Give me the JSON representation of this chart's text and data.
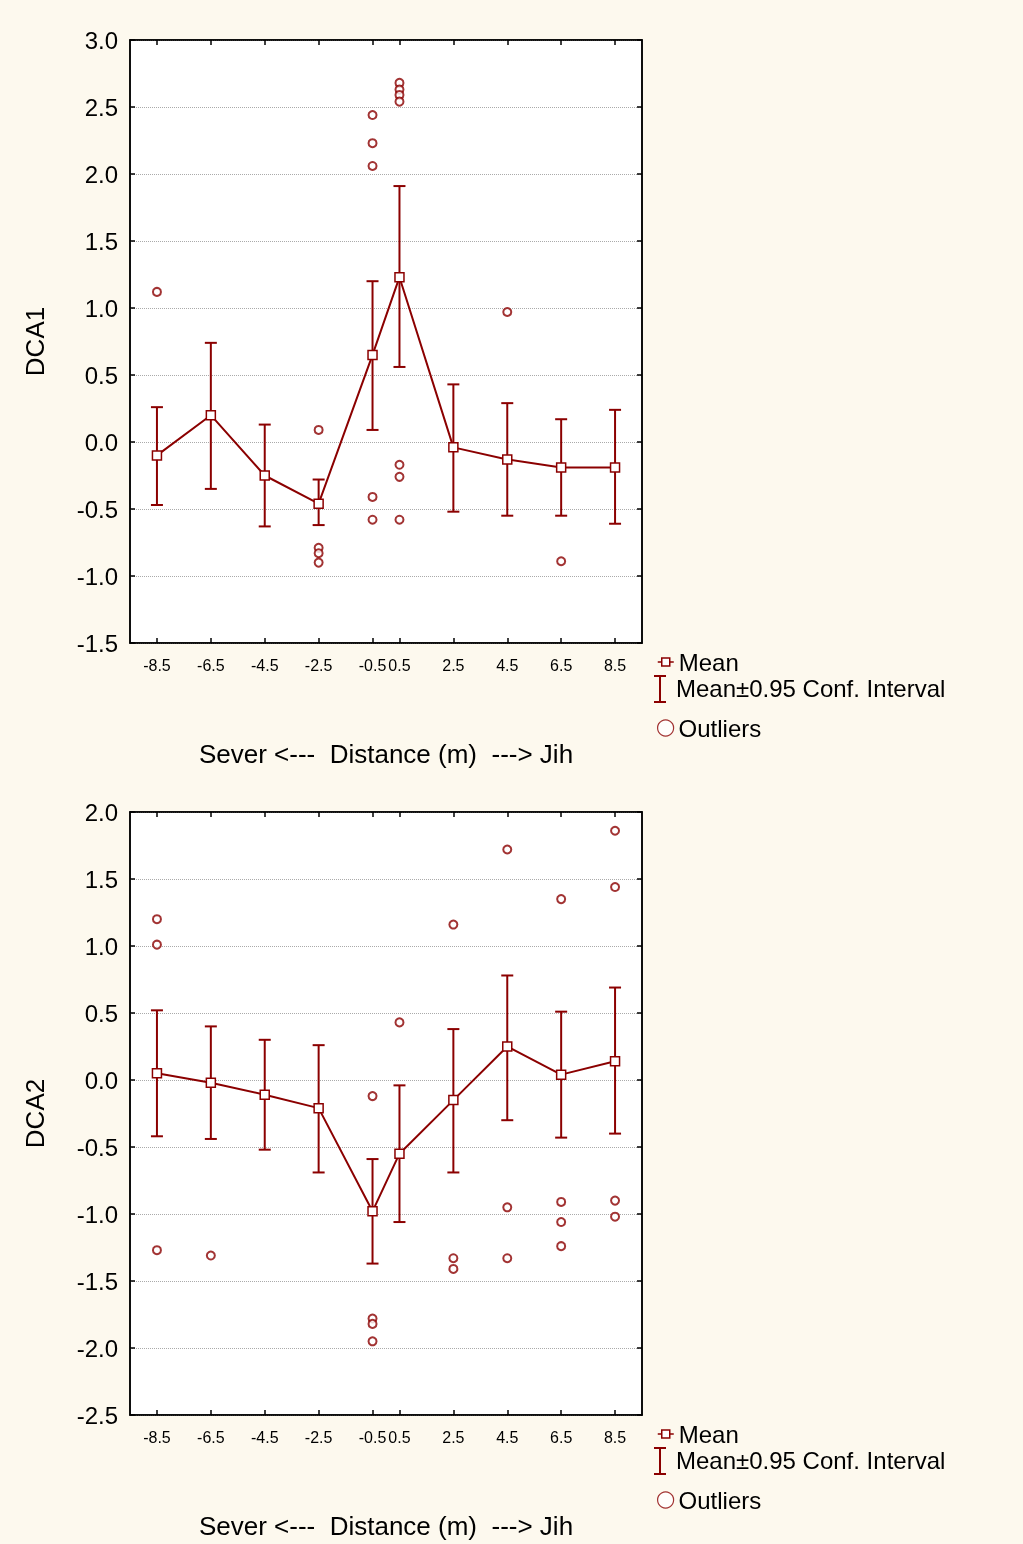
{
  "chart_data": [
    {
      "type": "line",
      "ylabel": "DCA1",
      "xlabel": "Sever <---  Distance (m)  ---> Jih",
      "annotations": [
        "Mean±0.95 Conf. Interval"
      ],
      "xlim": [
        -9.5,
        9.5
      ],
      "xticks": [
        -8.5,
        -6.5,
        -4.5,
        -2.5,
        -0.5,
        0.5,
        2.5,
        4.5,
        6.5,
        8.5
      ],
      "ylim": [
        -1.5,
        3.0
      ],
      "yticks": [
        -1.5,
        {
          "value": -1,
          "label": "-1.0"
        },
        -0.5,
        {
          "value": 0,
          "label": "0.0"
        },
        0.5,
        {
          "value": 1,
          "label": "1.0"
        },
        1.5,
        {
          "value": 2,
          "label": "2.0"
        },
        2.5,
        {
          "value": 3,
          "label": "3.0"
        }
      ],
      "grid": "y",
      "legend": "bottom right",
      "series": [
        {
          "name": "Mean",
          "color": "#8b0000",
          "marker": "square",
          "x": [
            -8.5,
            -6.5,
            -4.5,
            -2.5,
            -0.5,
            0.5,
            2.5,
            4.5,
            6.5,
            8.5
          ],
          "values": [
            -0.1,
            0.2,
            -0.25,
            -0.46,
            0.65,
            1.23,
            -0.04,
            -0.13,
            -0.19,
            -0.19
          ],
          "errors": [
            [
              -0.47,
              0.26
            ],
            [
              -0.35,
              0.74
            ],
            [
              -0.63,
              0.13
            ],
            [
              -0.62,
              -0.28
            ],
            [
              0.09,
              1.2
            ],
            [
              0.56,
              1.91
            ],
            [
              -0.52,
              0.43
            ],
            [
              -0.55,
              0.29
            ],
            [
              -0.55,
              0.17
            ],
            [
              -0.61,
              0.24
            ]
          ]
        },
        {
          "name": "Outliers",
          "type": "scatter",
          "color": "#8b0000",
          "marker": "circle",
          "x": [
            -8.5,
            -2.5,
            -2.5,
            -2.5,
            -2.5,
            -0.5,
            -0.5,
            -0.5,
            -0.5,
            -0.5,
            0.5,
            0.5,
            0.5,
            0.5,
            0.5,
            0.5,
            0.5,
            4.5,
            6.5
          ],
          "values": [
            1.12,
            0.09,
            -0.79,
            -0.83,
            -0.9,
            2.44,
            2.23,
            2.06,
            -0.41,
            -0.58,
            2.68,
            2.63,
            2.59,
            2.54,
            -0.17,
            -0.26,
            -0.58,
            0.97,
            -0.89
          ]
        }
      ]
    },
    {
      "type": "line",
      "ylabel": "DCA2",
      "xlabel": "Sever <---  Distance (m)  ---> Jih",
      "annotations": [
        "Mean±0.95 Conf. Interval"
      ],
      "xlim": [
        -9.5,
        9.5
      ],
      "xticks": [
        -8.5,
        -6.5,
        -4.5,
        -2.5,
        -0.5,
        0.5,
        2.5,
        4.5,
        6.5,
        8.5
      ],
      "ylim": [
        -2.5,
        2.0
      ],
      "yticks": [
        -2.5,
        {
          "value": -2,
          "label": "-2.0"
        },
        -1.5,
        {
          "value": -1,
          "label": "-1.0"
        },
        -0.5,
        {
          "value": 0,
          "label": "0.0"
        },
        0.5,
        {
          "value": 1,
          "label": "1.0"
        },
        1.5,
        {
          "value": 2,
          "label": "2.0"
        }
      ],
      "grid": "y",
      "legend": "bottom right",
      "series": [
        {
          "name": "Mean",
          "color": "#8b0000",
          "marker": "square",
          "x": [
            -8.5,
            -6.5,
            -4.5,
            -2.5,
            -0.5,
            0.5,
            2.5,
            4.5,
            6.5,
            8.5
          ],
          "values": [
            0.05,
            -0.02,
            -0.11,
            -0.21,
            -0.98,
            -0.55,
            -0.15,
            0.25,
            0.04,
            0.14
          ],
          "errors": [
            [
              -0.42,
              0.52
            ],
            [
              -0.44,
              0.4
            ],
            [
              -0.52,
              0.3
            ],
            [
              -0.69,
              0.26
            ],
            [
              -1.37,
              -0.59
            ],
            [
              -1.06,
              -0.04
            ],
            [
              -0.69,
              0.38
            ],
            [
              -0.3,
              0.78
            ],
            [
              -0.43,
              0.51
            ],
            [
              -0.4,
              0.69
            ]
          ]
        },
        {
          "name": "Outliers",
          "type": "scatter",
          "color": "#8b0000",
          "marker": "circle",
          "x": [
            -8.5,
            -8.5,
            -8.5,
            -6.5,
            -0.5,
            -0.5,
            -0.5,
            -0.5,
            0.5,
            2.5,
            2.5,
            2.5,
            4.5,
            4.5,
            4.5,
            6.5,
            6.5,
            6.5,
            6.5,
            8.5,
            8.5,
            8.5,
            8.5
          ],
          "values": [
            1.2,
            1.01,
            -1.27,
            -1.31,
            -0.12,
            -1.78,
            -1.82,
            -1.95,
            0.43,
            1.16,
            -1.33,
            -1.41,
            1.72,
            -0.95,
            -1.33,
            1.35,
            -0.91,
            -1.06,
            -1.24,
            1.86,
            1.44,
            -0.9,
            -1.02
          ]
        }
      ]
    }
  ]
}
